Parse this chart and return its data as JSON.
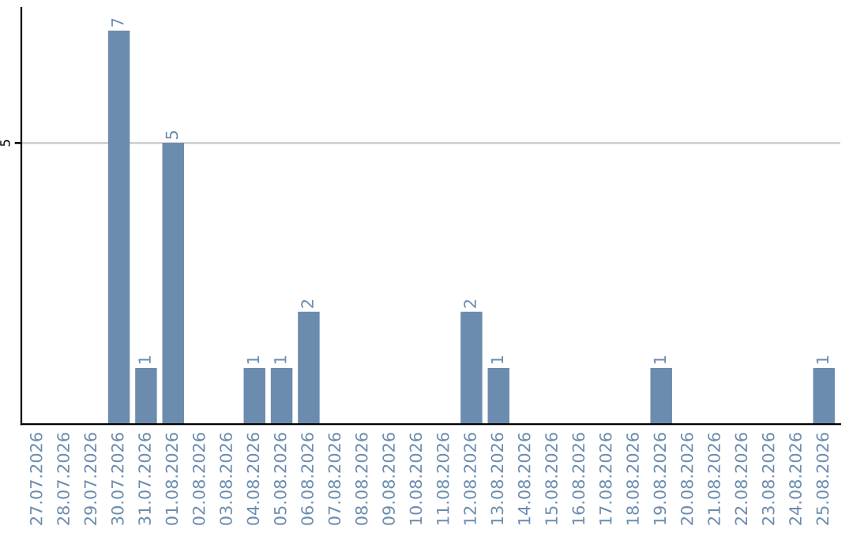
{
  "chart_data": {
    "type": "bar",
    "categories": [
      "27.07.2026",
      "28.07.2026",
      "29.07.2026",
      "30.07.2026",
      "31.07.2026",
      "01.08.2026",
      "02.08.2026",
      "03.08.2026",
      "04.08.2026",
      "05.08.2026",
      "06.08.2026",
      "07.08.2026",
      "08.08.2026",
      "09.08.2026",
      "10.08.2026",
      "11.08.2026",
      "12.08.2026",
      "13.08.2026",
      "14.08.2026",
      "15.08.2026",
      "16.08.2026",
      "17.08.2026",
      "18.08.2026",
      "19.08.2026",
      "20.08.2026",
      "21.08.2026",
      "22.08.2026",
      "23.08.2026",
      "24.08.2026",
      "25.08.2026"
    ],
    "values": [
      0,
      0,
      0,
      7,
      1,
      5,
      0,
      0,
      1,
      1,
      2,
      0,
      0,
      0,
      0,
      0,
      2,
      1,
      0,
      0,
      0,
      0,
      0,
      1,
      0,
      0,
      0,
      0,
      0,
      1
    ],
    "color": "#6b8cae",
    "ylim": [
      0,
      7.4
    ],
    "yticks": [
      5
    ],
    "grid": "y",
    "value_labels": [
      null,
      null,
      null,
      "7",
      "1",
      "5",
      null,
      null,
      "1",
      "1",
      "2",
      null,
      null,
      null,
      null,
      null,
      "2",
      "1",
      null,
      null,
      null,
      null,
      null,
      "1",
      null,
      null,
      null,
      null,
      null,
      "1"
    ]
  }
}
